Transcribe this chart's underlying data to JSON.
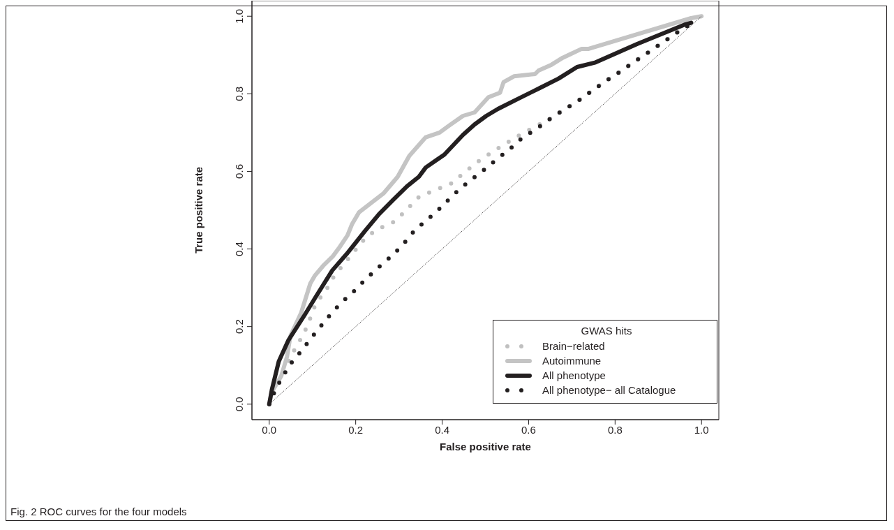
{
  "chart_data": {
    "type": "line",
    "xlabel": "False positive rate",
    "ylabel": "True positive rate",
    "legend_title": "GWAS hits",
    "legend": "bottom right",
    "grid": false,
    "xlim": [
      -0.04,
      1.04
    ],
    "ylim": [
      -0.04,
      1.04
    ],
    "xticks": [
      {
        "value": 0,
        "label": "0.0"
      },
      {
        "value": 0.2,
        "label": "0.2"
      },
      {
        "value": 0.4,
        "label": "0.4"
      },
      {
        "value": 0.6,
        "label": "0.6"
      },
      {
        "value": 0.8,
        "label": "0.8"
      },
      {
        "value": 1,
        "label": "1.0"
      }
    ],
    "yticks": [
      {
        "value": 0,
        "label": "0.0"
      },
      {
        "value": 0.2,
        "label": "0.2"
      },
      {
        "value": 0.4,
        "label": "0.4"
      },
      {
        "value": 0.6,
        "label": "0.6"
      },
      {
        "value": 0.8,
        "label": "0.8"
      },
      {
        "value": 1,
        "label": "1.0"
      }
    ],
    "annotations": [
      "Fig. 2 ROC curves for the four models"
    ],
    "series": [
      {
        "name": "Brain−related",
        "color": "#c0c0c0",
        "line_style": "dotted",
        "x": [
          0,
          0.015,
          0.031,
          0.061,
          0.079,
          0.094,
          0.108,
          0.131,
          0.15,
          0.174,
          0.2,
          0.225,
          0.257,
          0.292,
          0.32,
          0.347,
          0.384,
          0.42,
          0.48,
          0.512,
          0.546,
          0.58,
          0.615,
          0.649,
          0.682,
          0.716,
          0.748,
          0.78,
          0.813,
          0.845,
          0.877,
          0.91,
          0.942,
          0.976
        ],
        "values": [
          0,
          0.04,
          0.08,
          0.146,
          0.179,
          0.219,
          0.26,
          0.293,
          0.33,
          0.363,
          0.398,
          0.432,
          0.454,
          0.472,
          0.504,
          0.535,
          0.552,
          0.568,
          0.623,
          0.647,
          0.671,
          0.694,
          0.715,
          0.735,
          0.759,
          0.783,
          0.809,
          0.834,
          0.858,
          0.883,
          0.907,
          0.932,
          0.957,
          0.981
        ]
      },
      {
        "name": "Autoimmune",
        "color": "#c4c4c4",
        "line_style": "solid",
        "x": [
          0,
          0.006,
          0.028,
          0.041,
          0.049,
          0.074,
          0.095,
          0.106,
          0.125,
          0.147,
          0.163,
          0.181,
          0.192,
          0.208,
          0.265,
          0.297,
          0.324,
          0.362,
          0.394,
          0.416,
          0.448,
          0.475,
          0.507,
          0.534,
          0.542,
          0.566,
          0.615,
          0.623,
          0.653,
          0.679,
          0.696,
          0.723,
          0.739,
          0.852,
          0.976,
          1
        ],
        "values": [
          0,
          0.031,
          0.073,
          0.122,
          0.176,
          0.236,
          0.311,
          0.332,
          0.357,
          0.381,
          0.405,
          0.435,
          0.465,
          0.495,
          0.544,
          0.586,
          0.64,
          0.688,
          0.7,
          0.718,
          0.743,
          0.752,
          0.791,
          0.803,
          0.83,
          0.845,
          0.851,
          0.86,
          0.875,
          0.893,
          0.902,
          0.916,
          0.916,
          0.954,
          0.995,
          1
        ]
      },
      {
        "name": "All phenotype",
        "color": "#231f20",
        "line_style": "solid",
        "x": [
          0,
          0.006,
          0.022,
          0.044,
          0.082,
          0.109,
          0.146,
          0.179,
          0.222,
          0.254,
          0.286,
          0.319,
          0.346,
          0.362,
          0.389,
          0.405,
          0.448,
          0.475,
          0.502,
          0.529,
          0.572,
          0.626,
          0.669,
          0.712,
          0.755,
          0.852,
          0.96,
          0.976
        ],
        "values": [
          0,
          0.037,
          0.11,
          0.164,
          0.23,
          0.279,
          0.345,
          0.387,
          0.447,
          0.49,
          0.526,
          0.562,
          0.586,
          0.61,
          0.631,
          0.643,
          0.694,
          0.721,
          0.743,
          0.761,
          0.785,
          0.815,
          0.839,
          0.869,
          0.881,
          0.929,
          0.978,
          0.983
        ]
      },
      {
        "name": "All phenotype− all Catalogue",
        "color": "#231f20",
        "line_style": "dotted",
        "x": [
          0,
          0.015,
          0.031,
          0.051,
          0.075,
          0.096,
          0.12,
          0.143,
          0.169,
          0.195,
          0.221,
          0.25,
          0.279,
          0.307,
          0.33,
          0.357,
          0.385,
          0.413,
          0.441,
          0.47,
          0.498,
          0.526,
          0.557,
          0.585,
          0.62,
          0.649,
          0.682,
          0.716,
          0.748,
          0.78,
          0.813,
          0.845,
          0.877,
          0.91,
          0.942,
          0.976
        ],
        "values": [
          0,
          0.039,
          0.071,
          0.106,
          0.138,
          0.169,
          0.202,
          0.233,
          0.264,
          0.29,
          0.32,
          0.35,
          0.378,
          0.408,
          0.44,
          0.468,
          0.494,
          0.525,
          0.555,
          0.581,
          0.605,
          0.631,
          0.658,
          0.686,
          0.711,
          0.735,
          0.759,
          0.783,
          0.809,
          0.834,
          0.858,
          0.883,
          0.907,
          0.932,
          0.957,
          0.981
        ]
      },
      {
        "type": "line",
        "color": "#231f20",
        "line_style": "dotted",
        "x": [
          0,
          1
        ],
        "values": [
          0,
          1
        ]
      }
    ]
  }
}
